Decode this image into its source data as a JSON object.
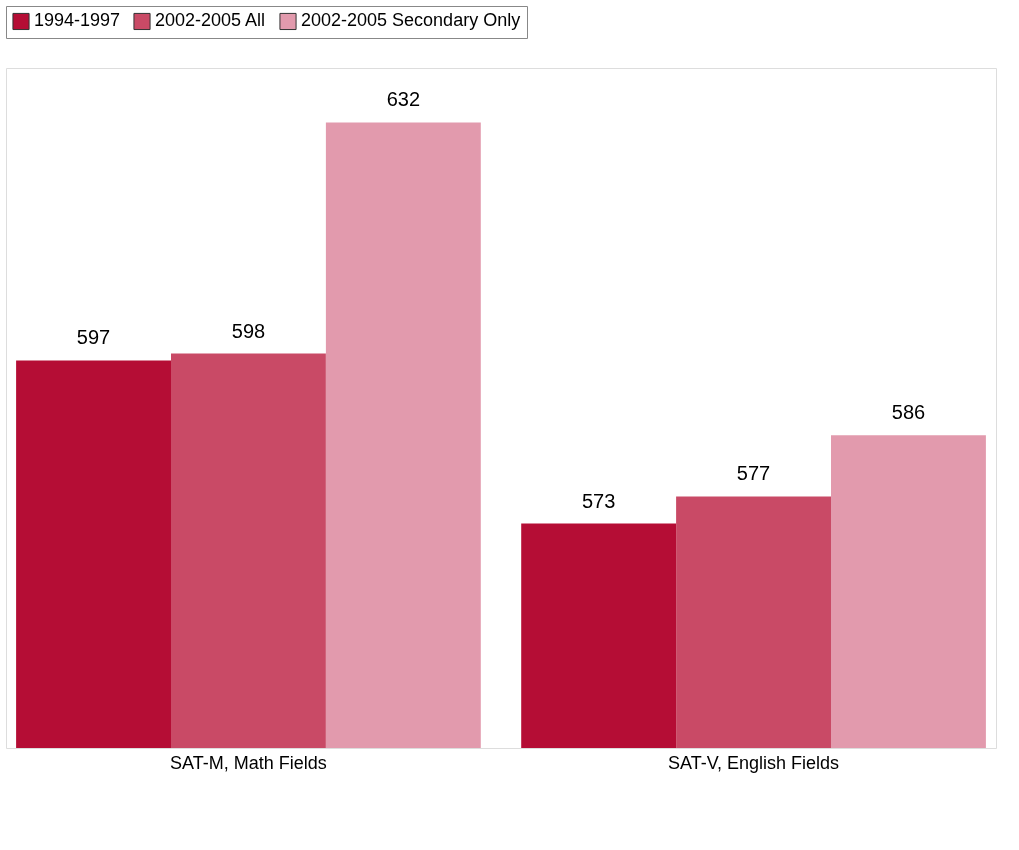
{
  "chart_data": {
    "type": "bar",
    "categories": [
      "SAT-M, Math Fields",
      "SAT-V, English Fields"
    ],
    "series": [
      {
        "name": "1994-1997",
        "color": "#b50d35",
        "values": [
          597,
          573
        ]
      },
      {
        "name": "2002-2005 All",
        "color": "#c94a66",
        "values": [
          598,
          577
        ]
      },
      {
        "name": "2002-2005 Secondary Only",
        "color": "#e29aad",
        "values": [
          632,
          586
        ]
      }
    ],
    "ylim": [
      540,
      640
    ],
    "data_labels": true,
    "legend": "top",
    "grid": false,
    "tick_labels": "x"
  }
}
